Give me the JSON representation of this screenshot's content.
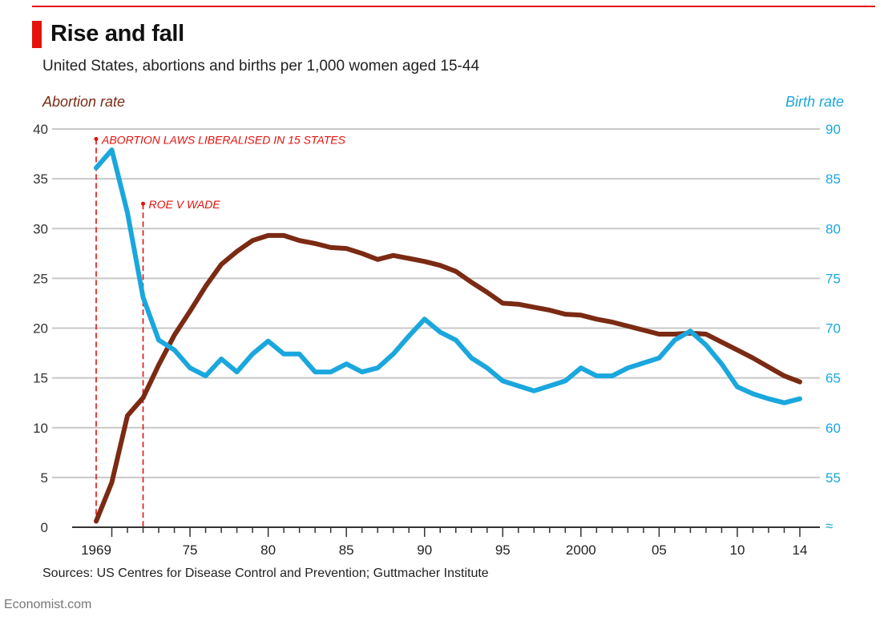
{
  "header": {
    "title": "Rise and fall",
    "subtitle": "United States, abortions and births per 1,000 women aged 15-44"
  },
  "footer": {
    "source": "Sources: US Centres for Disease Control and Prevention; Guttmacher Institute",
    "brand": "Economist.com"
  },
  "colors": {
    "accent": "#e3120b",
    "abortion": "#7b2a14",
    "birth": "#1aa7dd",
    "grid": "#c8c8c8"
  },
  "chart_data": {
    "type": "line",
    "title": "Rise and fall",
    "subtitle": "United States, abortions and births per 1,000 women aged 15-44",
    "x": [
      1969,
      1970,
      1971,
      1972,
      1973,
      1974,
      1975,
      1976,
      1977,
      1978,
      1979,
      1980,
      1981,
      1982,
      1983,
      1984,
      1985,
      1986,
      1987,
      1988,
      1989,
      1990,
      1991,
      1992,
      1993,
      1994,
      1995,
      1996,
      1997,
      1998,
      1999,
      2000,
      2001,
      2002,
      2003,
      2004,
      2005,
      2006,
      2007,
      2008,
      2009,
      2010,
      2011,
      2012,
      2013,
      2014
    ],
    "xlim": [
      1969,
      2014
    ],
    "x_ticks": [
      {
        "value": 1969,
        "label": "1969"
      },
      {
        "value": 1975,
        "label": "75"
      },
      {
        "value": 1980,
        "label": "80"
      },
      {
        "value": 1985,
        "label": "85"
      },
      {
        "value": 1990,
        "label": "90"
      },
      {
        "value": 1995,
        "label": "95"
      },
      {
        "value": 2000,
        "label": "2000"
      },
      {
        "value": 2005,
        "label": "05"
      },
      {
        "value": 2010,
        "label": "10"
      },
      {
        "value": 2014,
        "label": "14"
      }
    ],
    "left_axis": {
      "label": "Abortion rate",
      "ylim": [
        0,
        40
      ],
      "ticks": [
        "0",
        "5",
        "10",
        "15",
        "20",
        "25",
        "30",
        "35",
        "40"
      ]
    },
    "right_axis": {
      "label": "Birth rate",
      "ylim": [
        50,
        90
      ],
      "ticks": [
        "55",
        "60",
        "65",
        "70",
        "75",
        "80",
        "85",
        "90"
      ],
      "break_symbol": "≈"
    },
    "series": [
      {
        "axis": "left",
        "color": "#7b2a14",
        "values": [
          0.6,
          4.5,
          11.2,
          13.0,
          16.3,
          19.3,
          21.7,
          24.2,
          26.4,
          27.7,
          28.8,
          29.3,
          29.3,
          28.8,
          28.5,
          28.1,
          28.0,
          27.5,
          26.9,
          27.3,
          27.0,
          26.7,
          26.3,
          25.7,
          24.6,
          23.6,
          22.5,
          22.4,
          22.1,
          21.8,
          21.4,
          21.3,
          20.9,
          20.6,
          20.2,
          19.8,
          19.4,
          19.4,
          19.5,
          19.4,
          18.6,
          17.8,
          17.0,
          16.1,
          15.2,
          14.6
        ]
      },
      {
        "axis": "right",
        "color": "#1aa7dd",
        "values": [
          86.1,
          87.9,
          81.6,
          73.1,
          68.8,
          67.8,
          66.0,
          65.2,
          66.9,
          65.6,
          67.4,
          68.7,
          67.4,
          67.4,
          65.6,
          65.6,
          66.4,
          65.6,
          66.0,
          67.4,
          69.2,
          70.9,
          69.6,
          68.8,
          67.0,
          66.0,
          64.7,
          64.2,
          63.7,
          64.2,
          64.7,
          66.0,
          65.2,
          65.2,
          66.0,
          66.5,
          67.0,
          68.8,
          69.7,
          68.3,
          66.4,
          64.1,
          63.4,
          62.9,
          62.5,
          62.9
        ]
      }
    ],
    "annotations": [
      {
        "x": 1969,
        "label": "ABORTION LAWS LIBERALISED IN 15 STATES",
        "level": 39.0
      },
      {
        "x": 1972,
        "label": "ROE V WADE",
        "level": 32.5
      }
    ],
    "grid": true
  }
}
